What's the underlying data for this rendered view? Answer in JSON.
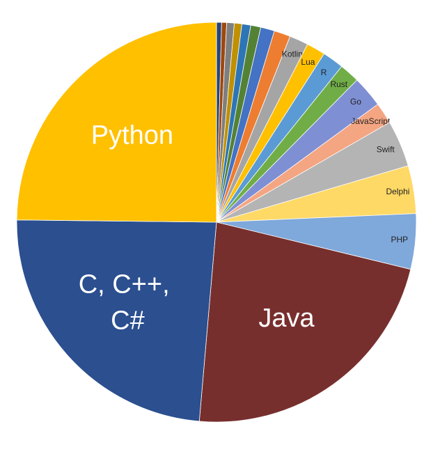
{
  "chart_data": {
    "type": "pie",
    "categories": [
      null,
      null,
      null,
      null,
      null,
      null,
      null,
      null,
      "Kotlin",
      "Lua",
      "R",
      "Rust",
      "Go",
      "JavaScript",
      "Swift",
      "Delphi",
      "PHP",
      "Java",
      "C, C++, C#",
      "Python"
    ],
    "values": [
      0.4,
      0.4,
      0.6,
      0.6,
      0.7,
      0.8,
      1.1,
      1.3,
      1.5,
      1.5,
      1.7,
      1.6,
      2.5,
      1.7,
      3.7,
      3.8,
      4.4,
      22.2,
      23.4,
      24.4
    ],
    "colors": [
      "#264478",
      "#9e480e",
      "#7f7f7f",
      "#bf9000",
      "#2e75b6",
      "#548235",
      "#4472c4",
      "#ed7d31",
      "#a5a5a5",
      "#ffc000",
      "#5b9bd5",
      "#70ad47",
      "#7f8fd3",
      "#f4a582",
      "#b4b4b4",
      "#ffd966",
      "#7fa8db",
      "#772f2d",
      "#2b4f8f",
      "#ffc000"
    ],
    "start_angle": 0,
    "direction": "clockwise"
  }
}
